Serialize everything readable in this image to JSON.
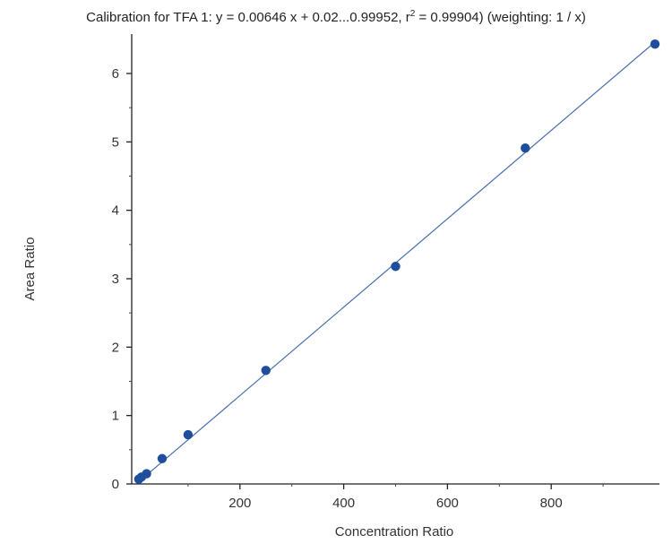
{
  "title": {
    "prefix": "Calibration for TFA 1: y = 0.00646 x + 0.02...0.99952, r",
    "sup": "2",
    "suffix": " = 0.99904)  (weighting: 1 / x)"
  },
  "chart_data": {
    "type": "scatter",
    "xlabel": "Concentration Ratio",
    "ylabel": "Area Ratio",
    "xlim": [
      0,
      1000
    ],
    "ylim": [
      0,
      6.5
    ],
    "x_ticks": [
      200,
      400,
      600,
      800
    ],
    "y_ticks": [
      0,
      1,
      2,
      3,
      4,
      5,
      6
    ],
    "grid": false,
    "legend": "none",
    "marker_color": "#1f4e9c",
    "line_color": "#4a6fb0",
    "series": [
      {
        "x": [
          5,
          10,
          20,
          50,
          100,
          250,
          500,
          750,
          1000
        ],
        "y": [
          0.07,
          0.1,
          0.15,
          0.37,
          0.72,
          1.66,
          3.18,
          4.91,
          6.43
        ]
      }
    ],
    "fit_line": {
      "slope": 0.00646,
      "intercept": 0.0,
      "x_range": [
        0,
        1000
      ]
    }
  }
}
